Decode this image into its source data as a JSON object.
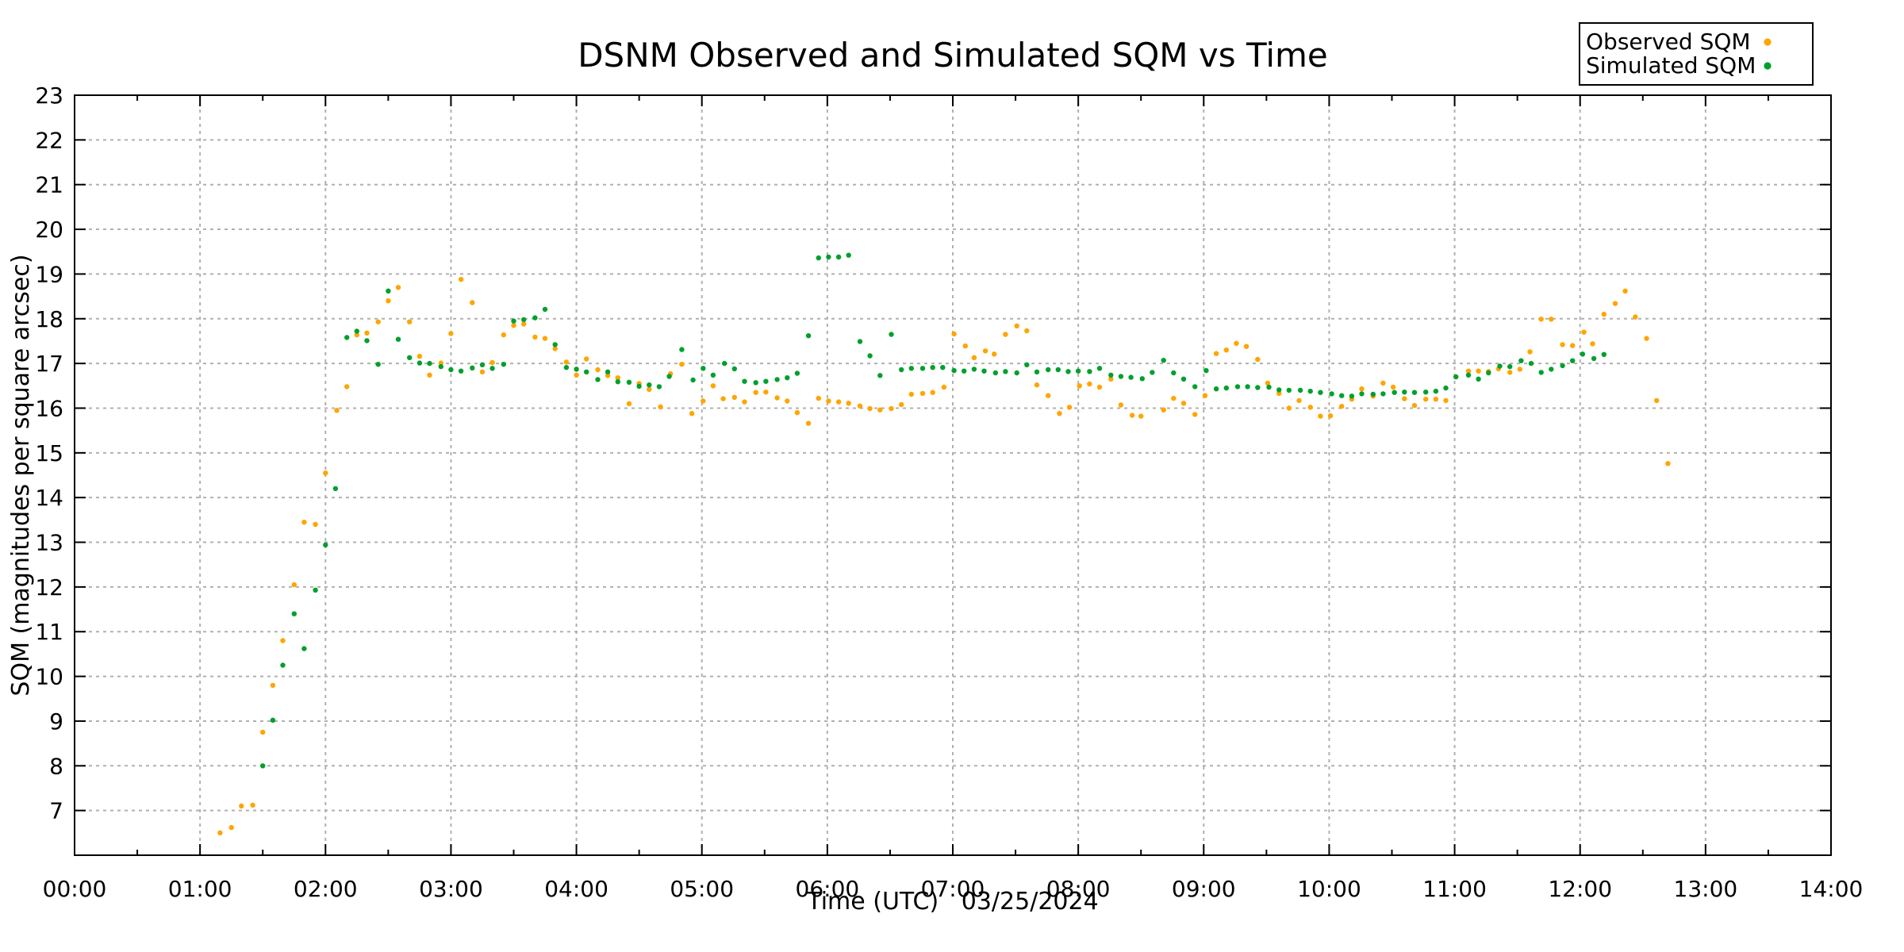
{
  "title": "DSNM Observed and Simulated SQM vs Time",
  "legend": {
    "position": "top-right",
    "entries": [
      {
        "label": "Observed SQM",
        "color": "#FFA500",
        "marker": "filled-dot"
      },
      {
        "label": "Simulated SQM",
        "color": "#00A02C",
        "marker": "filled-dot"
      }
    ]
  },
  "axes": {
    "x": {
      "label": "Time (UTC)   03/25/2024",
      "color": "#0a9e73",
      "ticks": [
        "00:00",
        "01:00",
        "02:00",
        "03:00",
        "04:00",
        "05:00",
        "06:00",
        "07:00",
        "08:00",
        "09:00",
        "10:00",
        "11:00",
        "12:00",
        "13:00",
        "14:00"
      ]
    },
    "y": {
      "label": "SQM (magnitudes per square arcsec)",
      "color": "#0a9e73",
      "ticks": [
        7,
        8,
        9,
        10,
        11,
        12,
        13,
        14,
        15,
        16,
        17,
        18,
        19,
        20,
        21,
        22,
        23
      ]
    }
  },
  "chart_data": {
    "type": "scatter",
    "title": "DSNM Observed and Simulated SQM vs Time",
    "xlabel": "Time (UTC)   03/25/2024",
    "ylabel": "SQM (magnitudes per square arcsec)",
    "date": "03/25/2024",
    "x_units": "hours UTC",
    "xlim_hours": [
      0,
      14
    ],
    "ylim": [
      6,
      23
    ],
    "x_major_tick_hours": 1,
    "x_minor_tick_hours": 0.5,
    "grid": true,
    "legend_position": "top-right",
    "marker_radius_px": 3.2,
    "series": [
      {
        "name": "Observed SQM",
        "color": "#FFA500",
        "points": [
          [
            1.16,
            6.5
          ],
          [
            1.25,
            6.62
          ],
          [
            1.33,
            7.1
          ],
          [
            1.42,
            7.12
          ],
          [
            1.5,
            8.75
          ],
          [
            1.58,
            9.8
          ],
          [
            1.66,
            10.8
          ],
          [
            1.75,
            12.05
          ],
          [
            1.83,
            13.45
          ],
          [
            1.92,
            13.4
          ],
          [
            2.0,
            14.55
          ],
          [
            2.09,
            15.95
          ],
          [
            2.17,
            16.48
          ],
          [
            2.25,
            17.64
          ],
          [
            2.33,
            17.68
          ],
          [
            2.42,
            17.93
          ],
          [
            2.5,
            18.4
          ],
          [
            2.58,
            18.7
          ],
          [
            2.67,
            17.93
          ],
          [
            2.75,
            17.16
          ],
          [
            2.83,
            16.74
          ],
          [
            2.92,
            17.01
          ],
          [
            3.0,
            17.67
          ],
          [
            3.08,
            18.88
          ],
          [
            3.17,
            18.36
          ],
          [
            3.25,
            16.81
          ],
          [
            3.33,
            17.02
          ],
          [
            3.42,
            17.64
          ],
          [
            3.5,
            17.85
          ],
          [
            3.58,
            17.88
          ],
          [
            3.67,
            17.59
          ],
          [
            3.75,
            17.56
          ],
          [
            3.83,
            17.33
          ],
          [
            3.92,
            17.03
          ],
          [
            4.0,
            16.74
          ],
          [
            4.08,
            17.1
          ],
          [
            4.17,
            16.86
          ],
          [
            4.25,
            16.73
          ],
          [
            4.33,
            16.68
          ],
          [
            4.42,
            16.1
          ],
          [
            4.5,
            16.55
          ],
          [
            4.58,
            16.42
          ],
          [
            4.67,
            16.03
          ],
          [
            4.75,
            16.77
          ],
          [
            4.84,
            16.98
          ],
          [
            4.92,
            15.88
          ],
          [
            5.01,
            16.16
          ],
          [
            5.09,
            16.5
          ],
          [
            5.17,
            16.21
          ],
          [
            5.26,
            16.24
          ],
          [
            5.34,
            16.14
          ],
          [
            5.43,
            16.35
          ],
          [
            5.51,
            16.36
          ],
          [
            5.6,
            16.23
          ],
          [
            5.68,
            16.16
          ],
          [
            5.76,
            15.9
          ],
          [
            5.85,
            15.66
          ],
          [
            5.93,
            16.22
          ],
          [
            6.01,
            16.16
          ],
          [
            6.09,
            16.14
          ],
          [
            6.17,
            16.11
          ],
          [
            6.26,
            16.05
          ],
          [
            6.34,
            15.99
          ],
          [
            6.42,
            15.96
          ],
          [
            6.51,
            15.99
          ],
          [
            6.59,
            16.08
          ],
          [
            6.67,
            16.31
          ],
          [
            6.76,
            16.33
          ],
          [
            6.84,
            16.35
          ],
          [
            6.93,
            16.47
          ],
          [
            7.01,
            17.66
          ],
          [
            7.1,
            17.39
          ],
          [
            7.17,
            17.13
          ],
          [
            7.26,
            17.28
          ],
          [
            7.33,
            17.21
          ],
          [
            7.42,
            17.65
          ],
          [
            7.51,
            17.84
          ],
          [
            7.59,
            17.73
          ],
          [
            7.67,
            16.52
          ],
          [
            7.76,
            16.28
          ],
          [
            7.85,
            15.88
          ],
          [
            7.93,
            16.02
          ],
          [
            8.01,
            16.5
          ],
          [
            8.09,
            16.54
          ],
          [
            8.17,
            16.47
          ],
          [
            8.26,
            16.65
          ],
          [
            8.34,
            16.07
          ],
          [
            8.43,
            15.84
          ],
          [
            8.5,
            15.82
          ],
          [
            8.68,
            15.96
          ],
          [
            8.76,
            16.22
          ],
          [
            8.84,
            16.11
          ],
          [
            8.93,
            15.86
          ],
          [
            9.01,
            16.28
          ],
          [
            9.1,
            17.22
          ],
          [
            9.18,
            17.3
          ],
          [
            9.26,
            17.45
          ],
          [
            9.34,
            17.38
          ],
          [
            9.43,
            17.09
          ],
          [
            9.51,
            16.56
          ],
          [
            9.6,
            16.33
          ],
          [
            9.68,
            16.0
          ],
          [
            9.76,
            16.17
          ],
          [
            9.85,
            16.02
          ],
          [
            9.93,
            15.82
          ],
          [
            10.01,
            15.83
          ],
          [
            10.1,
            16.04
          ],
          [
            10.18,
            16.2
          ],
          [
            10.26,
            16.43
          ],
          [
            10.35,
            16.27
          ],
          [
            10.43,
            16.56
          ],
          [
            10.51,
            16.47
          ],
          [
            10.6,
            16.21
          ],
          [
            10.68,
            16.06
          ],
          [
            10.77,
            16.2
          ],
          [
            10.85,
            16.2
          ],
          [
            10.93,
            16.17
          ],
          [
            11.01,
            16.7
          ],
          [
            11.11,
            16.83
          ],
          [
            11.19,
            16.83
          ],
          [
            11.27,
            16.82
          ],
          [
            11.35,
            16.88
          ],
          [
            11.44,
            16.8
          ],
          [
            11.52,
            16.87
          ],
          [
            11.6,
            17.26
          ],
          [
            11.69,
            17.99
          ],
          [
            11.77,
            17.99
          ],
          [
            11.86,
            17.42
          ],
          [
            11.94,
            17.4
          ],
          [
            12.03,
            17.7
          ],
          [
            12.1,
            17.44
          ],
          [
            12.19,
            18.1
          ],
          [
            12.28,
            18.34
          ],
          [
            12.36,
            18.62
          ],
          [
            12.44,
            18.04
          ],
          [
            12.53,
            17.56
          ],
          [
            12.61,
            16.17
          ],
          [
            12.7,
            14.76
          ]
        ]
      },
      {
        "name": "Simulated SQM",
        "color": "#00A02C",
        "points": [
          [
            1.5,
            8.0
          ],
          [
            1.58,
            9.02
          ],
          [
            1.66,
            10.25
          ],
          [
            1.75,
            11.4
          ],
          [
            1.83,
            10.62
          ],
          [
            1.92,
            11.93
          ],
          [
            2.0,
            12.94
          ],
          [
            2.08,
            14.2
          ],
          [
            2.17,
            17.58
          ],
          [
            2.25,
            17.72
          ],
          [
            2.33,
            17.51
          ],
          [
            2.42,
            16.98
          ],
          [
            2.5,
            18.62
          ],
          [
            2.58,
            17.54
          ],
          [
            2.67,
            17.13
          ],
          [
            2.75,
            17.01
          ],
          [
            2.83,
            17.0
          ],
          [
            2.92,
            16.93
          ],
          [
            3.0,
            16.86
          ],
          [
            3.08,
            16.83
          ],
          [
            3.17,
            16.9
          ],
          [
            3.25,
            16.97
          ],
          [
            3.33,
            16.89
          ],
          [
            3.42,
            16.98
          ],
          [
            3.5,
            17.95
          ],
          [
            3.58,
            17.98
          ],
          [
            3.67,
            18.02
          ],
          [
            3.75,
            18.21
          ],
          [
            3.83,
            17.42
          ],
          [
            3.92,
            16.91
          ],
          [
            4.0,
            16.87
          ],
          [
            4.08,
            16.81
          ],
          [
            4.17,
            16.64
          ],
          [
            4.25,
            16.81
          ],
          [
            4.33,
            16.59
          ],
          [
            4.42,
            16.58
          ],
          [
            4.5,
            16.49
          ],
          [
            4.58,
            16.52
          ],
          [
            4.66,
            16.48
          ],
          [
            4.74,
            16.71
          ],
          [
            4.84,
            17.31
          ],
          [
            4.93,
            16.63
          ],
          [
            5.01,
            16.89
          ],
          [
            5.09,
            16.74
          ],
          [
            5.18,
            17.0
          ],
          [
            5.26,
            16.88
          ],
          [
            5.34,
            16.6
          ],
          [
            5.43,
            16.57
          ],
          [
            5.51,
            16.6
          ],
          [
            5.6,
            16.64
          ],
          [
            5.68,
            16.68
          ],
          [
            5.76,
            16.78
          ],
          [
            5.85,
            17.62
          ],
          [
            5.93,
            19.36
          ],
          [
            6.01,
            19.38
          ],
          [
            6.09,
            19.38
          ],
          [
            6.17,
            19.42
          ],
          [
            6.26,
            17.49
          ],
          [
            6.34,
            17.17
          ],
          [
            6.42,
            16.73
          ],
          [
            6.51,
            17.65
          ],
          [
            6.59,
            16.86
          ],
          [
            6.67,
            16.89
          ],
          [
            6.76,
            16.89
          ],
          [
            6.84,
            16.91
          ],
          [
            6.92,
            16.91
          ],
          [
            7.01,
            16.84
          ],
          [
            7.09,
            16.83
          ],
          [
            7.17,
            16.87
          ],
          [
            7.25,
            16.83
          ],
          [
            7.34,
            16.79
          ],
          [
            7.42,
            16.82
          ],
          [
            7.51,
            16.79
          ],
          [
            7.59,
            16.97
          ],
          [
            7.67,
            16.81
          ],
          [
            7.76,
            16.86
          ],
          [
            7.84,
            16.86
          ],
          [
            7.92,
            16.82
          ],
          [
            8.0,
            16.83
          ],
          [
            8.09,
            16.82
          ],
          [
            8.17,
            16.89
          ],
          [
            8.26,
            16.74
          ],
          [
            8.34,
            16.71
          ],
          [
            8.42,
            16.69
          ],
          [
            8.51,
            16.66
          ],
          [
            8.59,
            16.8
          ],
          [
            8.68,
            17.07
          ],
          [
            8.76,
            16.79
          ],
          [
            8.84,
            16.65
          ],
          [
            8.93,
            16.48
          ],
          [
            9.02,
            16.84
          ],
          [
            9.1,
            16.43
          ],
          [
            9.18,
            16.45
          ],
          [
            9.27,
            16.48
          ],
          [
            9.35,
            16.48
          ],
          [
            9.43,
            16.46
          ],
          [
            9.52,
            16.47
          ],
          [
            9.6,
            16.41
          ],
          [
            9.68,
            16.4
          ],
          [
            9.77,
            16.4
          ],
          [
            9.85,
            16.38
          ],
          [
            9.93,
            16.35
          ],
          [
            10.02,
            16.32
          ],
          [
            10.1,
            16.28
          ],
          [
            10.18,
            16.27
          ],
          [
            10.26,
            16.32
          ],
          [
            10.35,
            16.31
          ],
          [
            10.43,
            16.32
          ],
          [
            10.52,
            16.35
          ],
          [
            10.6,
            16.36
          ],
          [
            10.68,
            16.35
          ],
          [
            10.77,
            16.36
          ],
          [
            10.85,
            16.38
          ],
          [
            10.93,
            16.45
          ],
          [
            11.01,
            16.7
          ],
          [
            11.11,
            16.74
          ],
          [
            11.19,
            16.65
          ],
          [
            11.27,
            16.79
          ],
          [
            11.36,
            16.94
          ],
          [
            11.44,
            16.93
          ],
          [
            11.53,
            17.06
          ],
          [
            11.61,
            17.0
          ],
          [
            11.69,
            16.8
          ],
          [
            11.77,
            16.87
          ],
          [
            11.86,
            16.95
          ],
          [
            11.94,
            17.06
          ],
          [
            12.02,
            17.21
          ],
          [
            12.11,
            17.11
          ],
          [
            12.19,
            17.2
          ]
        ]
      }
    ]
  }
}
